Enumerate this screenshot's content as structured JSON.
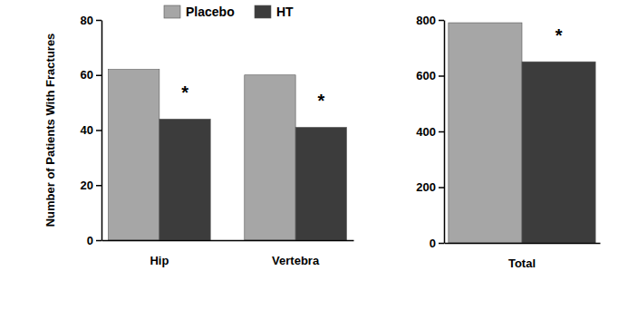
{
  "chart_data": [
    {
      "type": "bar",
      "ylabel": "Number of Patients With Fractures",
      "categories": [
        "Hip",
        "Vertebra"
      ],
      "series": [
        {
          "name": "Placebo",
          "color": "#a6a6a6",
          "values": [
            62,
            60
          ]
        },
        {
          "name": "HT",
          "color": "#3c3c3c",
          "values": [
            44,
            41
          ]
        }
      ],
      "ylim": [
        0,
        80
      ],
      "yticks": [
        0,
        20,
        40,
        60,
        80
      ],
      "legend": "top",
      "annotations": [
        {
          "text": "*",
          "category": 0,
          "series": 1
        },
        {
          "text": "*",
          "category": 1,
          "series": 1
        }
      ]
    },
    {
      "type": "bar",
      "categories": [
        "Total"
      ],
      "series": [
        {
          "color": "#a6a6a6",
          "values": [
            790
          ]
        },
        {
          "color": "#3c3c3c",
          "values": [
            650
          ]
        }
      ],
      "ylim": [
        0,
        800
      ],
      "yticks": [
        0,
        200,
        400,
        600,
        800
      ],
      "annotations": [
        {
          "text": "*",
          "category": 0,
          "series": 1
        }
      ]
    }
  ]
}
